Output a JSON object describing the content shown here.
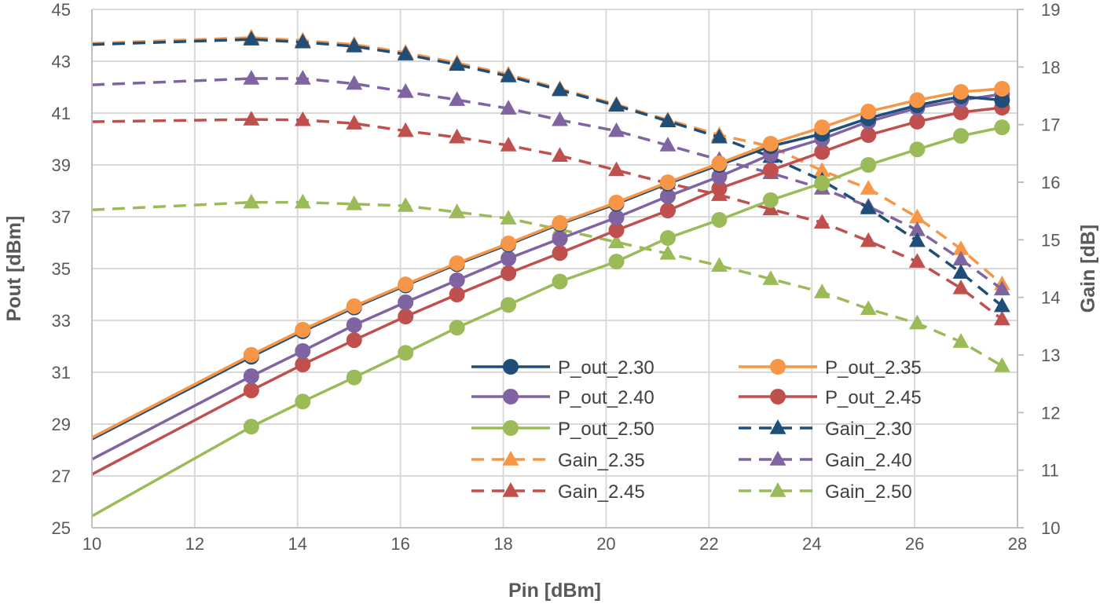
{
  "chart_data": {
    "type": "line",
    "title": "",
    "xlabel": "Pin [dBm]",
    "ylabel": "Pout [dBm]",
    "y2label": "Gain [dB]",
    "xlim": [
      10,
      28
    ],
    "ylim": [
      25,
      45
    ],
    "y2lim": [
      10,
      19
    ],
    "xticks": [
      "10",
      "12",
      "14",
      "16",
      "18",
      "20",
      "22",
      "24",
      "26",
      "28"
    ],
    "yticks": [
      "25",
      "27",
      "29",
      "31",
      "33",
      "35",
      "37",
      "39",
      "41",
      "43",
      "45"
    ],
    "y2ticks": [
      "10",
      "11",
      "12",
      "13",
      "14",
      "15",
      "16",
      "17",
      "18",
      "19"
    ],
    "grid": true,
    "legend_placement": "bottom-right inside",
    "x": [
      10,
      13.1,
      14.1,
      15.1,
      16.1,
      17.1,
      18.1,
      19.1,
      20.2,
      21.2,
      22.2,
      23.2,
      24.2,
      25.1,
      26.05,
      26.9,
      27.7
    ],
    "series": [
      {
        "name": "P_out_2.30",
        "axis": "left",
        "style": "solid",
        "marker": "circle",
        "color": "#1F4E79",
        "values": [
          28.42,
          31.6,
          32.58,
          33.5,
          34.35,
          35.17,
          35.93,
          36.72,
          37.5,
          38.28,
          39.0,
          39.72,
          40.2,
          40.8,
          41.3,
          41.64,
          41.5
        ]
      },
      {
        "name": "P_out_2.35",
        "axis": "left",
        "style": "solid",
        "marker": "circle",
        "color": "#F79646",
        "values": [
          28.48,
          31.67,
          32.64,
          33.55,
          34.39,
          35.21,
          35.97,
          36.76,
          37.55,
          38.33,
          39.06,
          39.82,
          40.45,
          41.06,
          41.5,
          41.82,
          41.94
        ]
      },
      {
        "name": "P_out_2.40",
        "axis": "left",
        "style": "solid",
        "marker": "circle",
        "color": "#8064A2",
        "values": [
          27.64,
          30.85,
          31.82,
          32.82,
          33.7,
          34.55,
          35.39,
          36.15,
          36.97,
          37.79,
          38.55,
          39.4,
          40.0,
          40.67,
          41.2,
          41.5,
          41.73
        ]
      },
      {
        "name": "P_out_2.45",
        "axis": "left",
        "style": "solid",
        "marker": "circle",
        "color": "#C0504D",
        "values": [
          27.06,
          30.3,
          31.3,
          32.24,
          33.15,
          34.0,
          34.82,
          35.6,
          36.48,
          37.24,
          38.09,
          38.79,
          39.5,
          40.15,
          40.67,
          41.03,
          41.21
        ]
      },
      {
        "name": "P_out_2.50",
        "axis": "left",
        "style": "solid",
        "marker": "circle",
        "color": "#9BBB59",
        "values": [
          25.45,
          28.9,
          29.87,
          30.8,
          31.75,
          32.72,
          33.6,
          34.5,
          35.27,
          36.18,
          36.88,
          37.64,
          38.3,
          39.0,
          39.6,
          40.12,
          40.45
        ]
      },
      {
        "name": "Gain_2.30",
        "axis": "right",
        "style": "dashed",
        "marker": "triangle",
        "color": "#1F4E79",
        "values": [
          18.39,
          18.48,
          18.43,
          18.36,
          18.22,
          18.04,
          17.84,
          17.6,
          17.33,
          17.06,
          16.78,
          16.44,
          16.03,
          15.55,
          14.98,
          14.43,
          13.85
        ]
      },
      {
        "name": "Gain_2.35",
        "axis": "right",
        "style": "dashed",
        "marker": "triangle",
        "color": "#F79646",
        "values": [
          18.41,
          18.51,
          18.46,
          18.39,
          18.25,
          18.07,
          17.87,
          17.62,
          17.35,
          17.08,
          16.82,
          16.62,
          16.2,
          15.89,
          15.39,
          14.84,
          14.23
        ]
      },
      {
        "name": "Gain_2.40",
        "axis": "right",
        "style": "dashed",
        "marker": "triangle",
        "color": "#8064A2",
        "values": [
          17.69,
          17.8,
          17.8,
          17.71,
          17.57,
          17.43,
          17.28,
          17.08,
          16.89,
          16.64,
          16.39,
          16.16,
          15.89,
          15.58,
          15.17,
          14.66,
          14.14
        ]
      },
      {
        "name": "Gain_2.45",
        "axis": "right",
        "style": "dashed",
        "marker": "triangle",
        "color": "#C0504D",
        "values": [
          17.05,
          17.09,
          17.08,
          17.02,
          16.89,
          16.78,
          16.64,
          16.46,
          16.21,
          15.98,
          15.78,
          15.53,
          15.3,
          14.98,
          14.62,
          14.16,
          13.62
        ]
      },
      {
        "name": "Gain_2.50",
        "axis": "right",
        "style": "dashed",
        "marker": "triangle",
        "color": "#9BBB59",
        "values": [
          15.52,
          15.65,
          15.65,
          15.62,
          15.59,
          15.48,
          15.37,
          15.18,
          14.96,
          14.76,
          14.55,
          14.32,
          14.09,
          13.8,
          13.55,
          13.23,
          12.81
        ]
      }
    ]
  }
}
